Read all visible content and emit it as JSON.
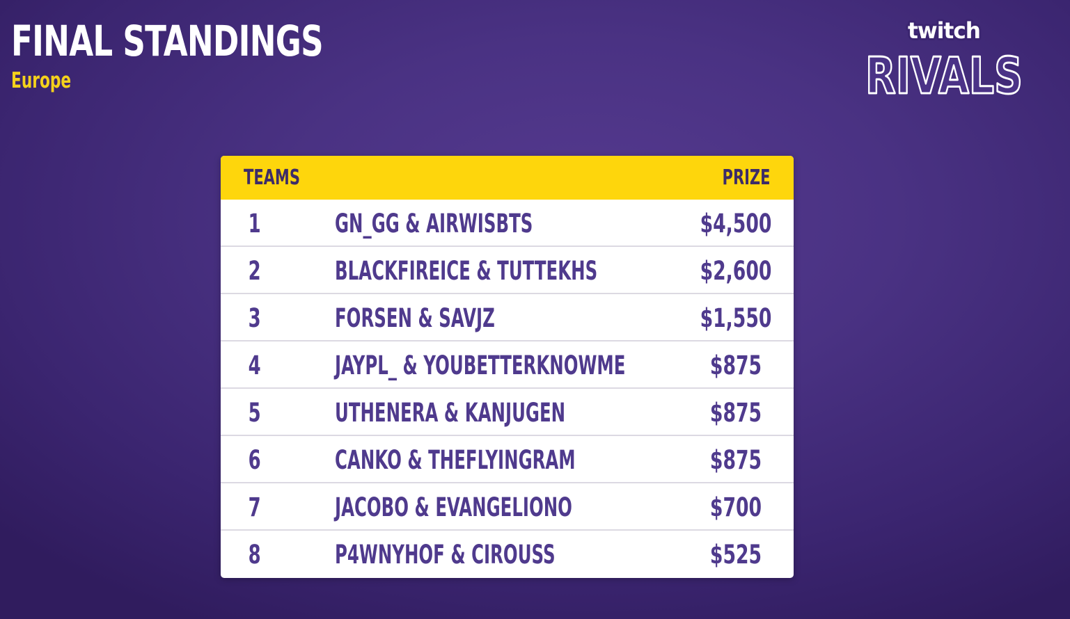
{
  "header": {
    "title": "FINAL STANDINGS",
    "subtitle": "Europe"
  },
  "logo": {
    "top_word": "twitch",
    "bottom_word": "RIVALS"
  },
  "colors": {
    "background": "#4a3283",
    "title": "#ffffff",
    "subtitle": "#f4d11c",
    "table_header": "#fed60c",
    "table_header_text": "#3d2c68",
    "row_text": "#4f3a8d",
    "row_divider": "#dcd9e2"
  },
  "standings": {
    "columns": {
      "teams": "TEAMS",
      "prize": "PRIZE"
    },
    "rows": [
      {
        "rank": "1",
        "team": "GN_GG & AIRWISBTS",
        "prize": "$4,500"
      },
      {
        "rank": "2",
        "team": "BLACKFIREICE & TUTTEKHS",
        "prize": "$2,600"
      },
      {
        "rank": "3",
        "team": "FORSEN & SAVJZ",
        "prize": "$1,550"
      },
      {
        "rank": "4",
        "team": "JAYPL_ & YOUBETTERKNOWME",
        "prize": "$875"
      },
      {
        "rank": "5",
        "team": "UTHENERA & KANJUGEN",
        "prize": "$875"
      },
      {
        "rank": "6",
        "team": "CANKO & THEFLYINGRAM",
        "prize": "$875"
      },
      {
        "rank": "7",
        "team": "JACOBO & EVANGELIONO",
        "prize": "$700"
      },
      {
        "rank": "8",
        "team": "P4WNYHOF & CIROUSS",
        "prize": "$525"
      }
    ]
  }
}
